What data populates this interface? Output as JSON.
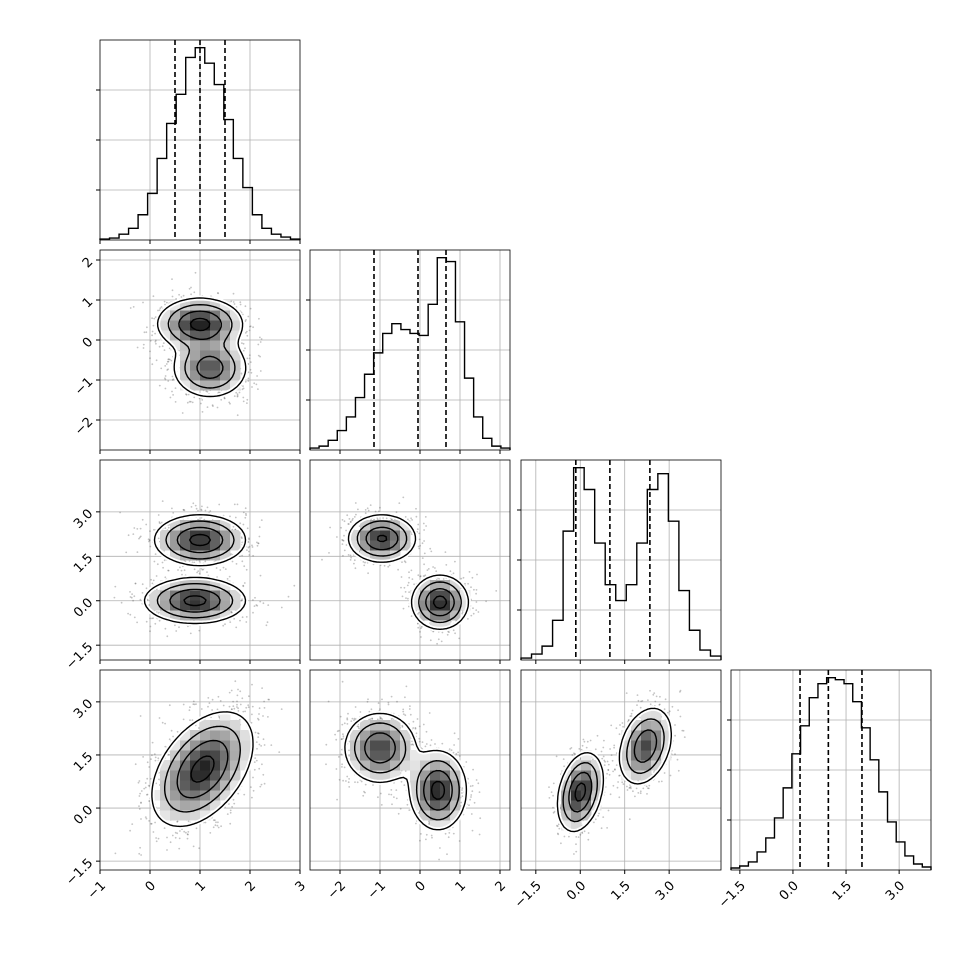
{
  "chart_data": {
    "type": "corner",
    "grid": true,
    "variables": [
      {
        "range": [
          -1,
          3
        ],
        "ticks": [
          -1,
          0,
          1,
          2,
          3
        ],
        "tick_labels": [
          "−1",
          "0",
          "1",
          "2",
          "3"
        ],
        "quantiles": [
          0.5,
          1.0,
          1.5
        ],
        "hist": [
          0.5,
          1,
          3,
          6,
          13,
          24,
          42,
          60,
          75,
          94,
          99,
          91,
          80,
          62,
          42,
          27,
          13,
          6,
          3,
          1.5,
          0.5
        ]
      },
      {
        "range": [
          -2.75,
          2.25
        ],
        "ticks": [
          -2,
          -1,
          0,
          1,
          2
        ],
        "tick_labels": [
          "−2",
          "−1",
          "0",
          "1",
          "2"
        ],
        "quantiles": [
          -1.15,
          -0.05,
          0.65
        ],
        "hist": [
          1,
          2,
          5,
          10,
          17,
          27,
          39,
          50,
          60,
          65,
          62,
          60,
          59,
          75,
          99,
          97,
          66,
          37,
          17,
          6,
          2,
          1
        ]
      },
      {
        "range": [
          -2.0,
          4.75
        ],
        "ticks": [
          -1.5,
          0.0,
          1.5,
          3.0
        ],
        "tick_labels": [
          "−1.5",
          "0.0",
          "1.5",
          "3.0"
        ],
        "quantiles": [
          -0.15,
          1.0,
          2.35
        ],
        "hist": [
          1,
          3,
          7,
          20,
          65,
          97,
          86,
          59,
          38,
          30,
          38,
          59,
          86,
          94,
          70,
          35,
          15,
          5,
          2
        ]
      },
      {
        "range": [
          -1.75,
          3.9
        ],
        "ticks": [
          -1.5,
          0.0,
          1.5,
          3.0
        ],
        "tick_labels": [
          "−1.5",
          "0.0",
          "1.5",
          "3.0"
        ],
        "quantiles": [
          0.2,
          1.0,
          1.95
        ],
        "hist": [
          1,
          2,
          4,
          9,
          16,
          26,
          41,
          58,
          72,
          86,
          93,
          96,
          95,
          93,
          84,
          71,
          55,
          39,
          24,
          14,
          7,
          3,
          1.5
        ]
      }
    ],
    "pairs": [
      {
        "row": 1,
        "col": 0,
        "y_ticks": [
          -2,
          -1,
          0,
          1,
          2
        ],
        "y_tick_labels": [
          "−2",
          "−1",
          "0",
          "1",
          "2"
        ],
        "components": [
          {
            "mx": 1.0,
            "my": 0.4,
            "sx": 0.42,
            "sy": 0.32,
            "rho": 0.0,
            "w": 0.55
          },
          {
            "mx": 1.2,
            "my": -0.7,
            "sx": 0.38,
            "sy": 0.38,
            "rho": 0.0,
            "w": 0.45
          }
        ]
      },
      {
        "row": 2,
        "col": 0,
        "y_ticks": [
          -1.5,
          0.0,
          1.5,
          3.0
        ],
        "y_tick_labels": [
          "−1.5",
          "0.0",
          "1.5",
          "3.0"
        ],
        "components": [
          {
            "mx": 1.0,
            "my": 2.05,
            "sx": 0.45,
            "sy": 0.42,
            "rho": 0.0,
            "w": 0.5
          },
          {
            "mx": 0.9,
            "my": 0.0,
            "sx": 0.5,
            "sy": 0.38,
            "rho": 0.0,
            "w": 0.5
          }
        ]
      },
      {
        "row": 2,
        "col": 1,
        "components": [
          {
            "mx": -0.95,
            "my": 2.1,
            "sx": 0.42,
            "sy": 0.4,
            "rho": 0.0,
            "w": 0.5
          },
          {
            "mx": 0.5,
            "my": -0.05,
            "sx": 0.35,
            "sy": 0.45,
            "rho": 0.0,
            "w": 0.5
          }
        ]
      },
      {
        "row": 3,
        "col": 0,
        "y_ticks": [
          -1.5,
          0.0,
          1.5,
          3.0
        ],
        "y_tick_labels": [
          "−1.5",
          "0.0",
          "1.5",
          "3.0"
        ],
        "components": [
          {
            "mx": 1.05,
            "my": 1.1,
            "sx": 0.5,
            "sy": 0.8,
            "rho": 0.45,
            "w": 1.0
          }
        ]
      },
      {
        "row": 3,
        "col": 1,
        "components": [
          {
            "mx": -1.0,
            "my": 1.7,
            "sx": 0.45,
            "sy": 0.5,
            "rho": 0.0,
            "w": 0.5
          },
          {
            "mx": 0.45,
            "my": 0.5,
            "sx": 0.35,
            "sy": 0.55,
            "rho": 0.0,
            "w": 0.5
          }
        ]
      },
      {
        "row": 3,
        "col": 2,
        "components": [
          {
            "mx": 0.0,
            "my": 0.45,
            "sx": 0.38,
            "sy": 0.55,
            "rho": 0.3,
            "w": 0.5
          },
          {
            "mx": 2.2,
            "my": 1.75,
            "sx": 0.45,
            "sy": 0.55,
            "rho": 0.3,
            "w": 0.5
          }
        ]
      }
    ]
  }
}
